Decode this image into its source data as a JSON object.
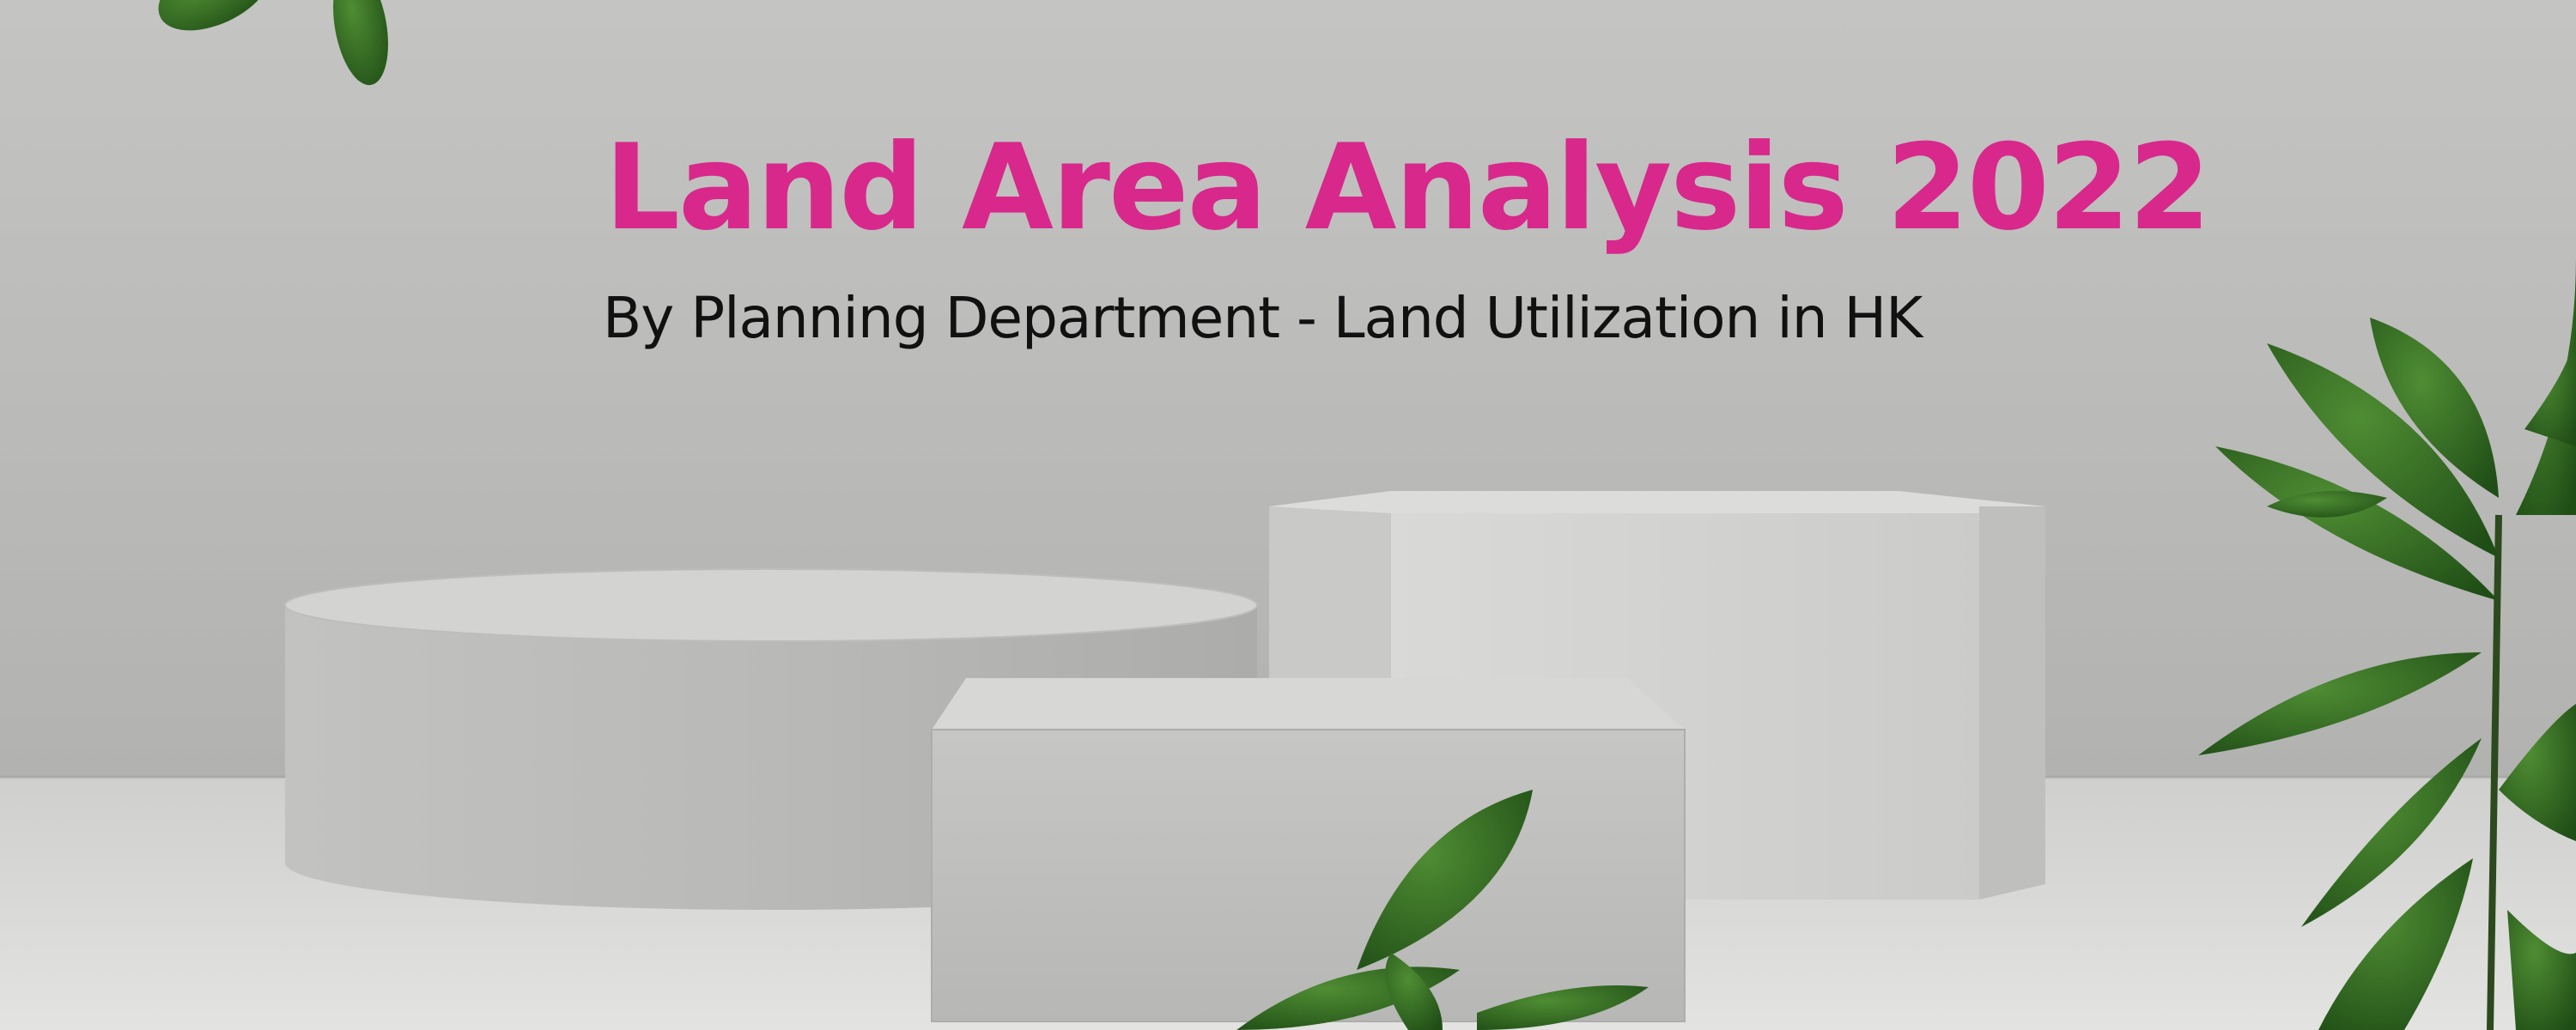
{
  "banner": {
    "title": "Land Area Analysis 2022",
    "subtitle": "By Planning Department - Land Utilization in HK"
  },
  "colors": {
    "title": "#d8288b",
    "subtitle": "#111111",
    "wall": "#bdbdbb",
    "floor": "#d6d6d4",
    "pedestal": "#cfcfcd",
    "leaf": "#2f6b22"
  },
  "decorations": [
    "concrete-wall",
    "concrete-floor",
    "round-pedestal",
    "hexagonal-pedestal",
    "rectangular-pedestal",
    "plant-leaves"
  ]
}
